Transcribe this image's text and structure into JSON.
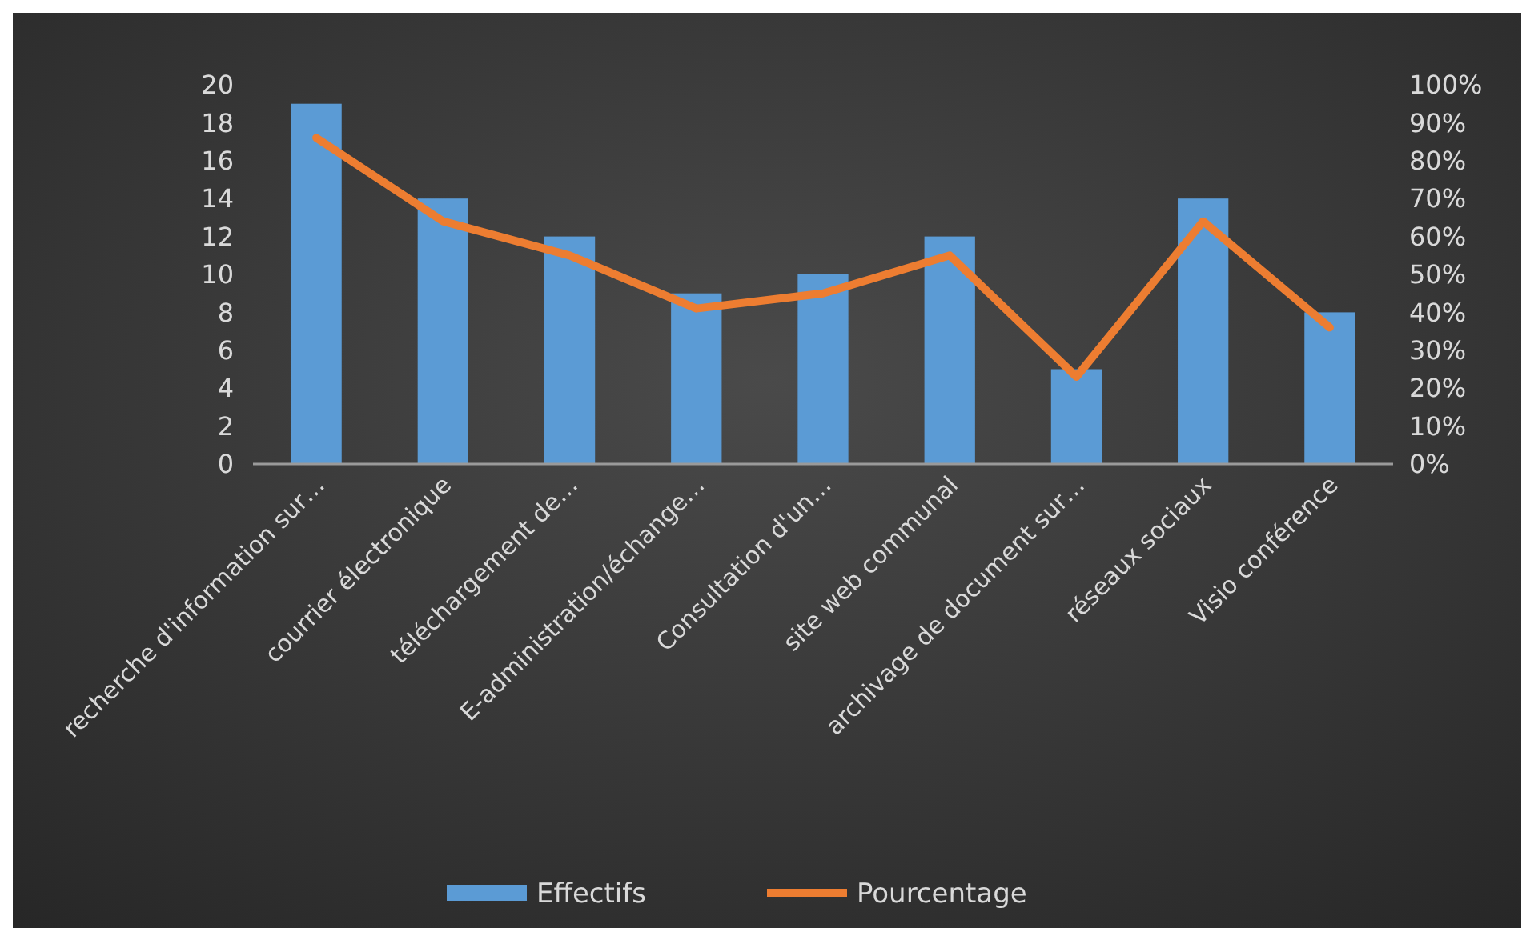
{
  "chart_data": {
    "type": "bar",
    "categories": [
      "recherche d'information sur…",
      "courrier électronique",
      "téléchargement de…",
      "E-administration/échange…",
      "Consultation d'un…",
      "site web communal",
      "archivage de document sur…",
      "réseaux sociaux",
      "Visio conférence"
    ],
    "series": [
      {
        "name": "Effectifs",
        "color": "#5b9bd5",
        "values": [
          19,
          14,
          12,
          9,
          10,
          12,
          5,
          14,
          8
        ]
      },
      {
        "name": "Pourcentage",
        "type": "line",
        "axis": "y2",
        "color": "#ed7d31",
        "values": [
          86,
          64,
          55,
          41,
          45,
          55,
          23,
          64,
          36
        ]
      }
    ],
    "ylim": [
      0,
      20
    ],
    "yticks": [
      0,
      2,
      4,
      6,
      8,
      10,
      12,
      14,
      16,
      18,
      20
    ],
    "y2lim": [
      0,
      100
    ],
    "y2ticks": [
      {
        "value": 0,
        "label": "0%"
      },
      {
        "value": 10,
        "label": "10%"
      },
      {
        "value": 20,
        "label": "20%"
      },
      {
        "value": 30,
        "label": "30%"
      },
      {
        "value": 40,
        "label": "40%"
      },
      {
        "value": 50,
        "label": "50%"
      },
      {
        "value": 60,
        "label": "60%"
      },
      {
        "value": 70,
        "label": "70%"
      },
      {
        "value": 80,
        "label": "80%"
      },
      {
        "value": 90,
        "label": "90%"
      },
      {
        "value": 100,
        "label": "100%"
      }
    ],
    "legend": "bottom",
    "marker": "none"
  }
}
